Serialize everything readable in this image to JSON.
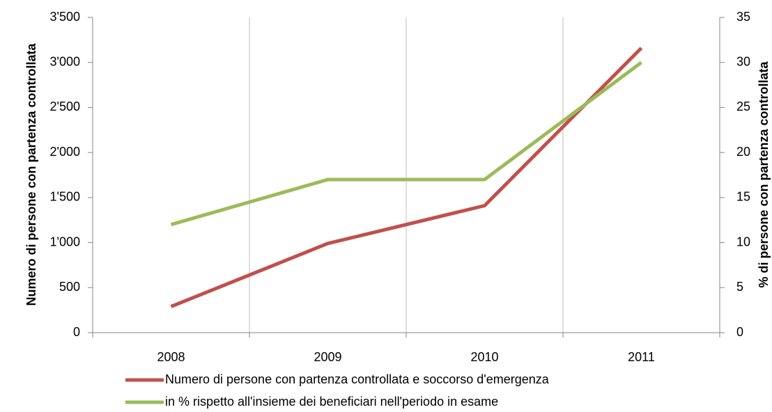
{
  "chart_data": {
    "type": "line",
    "categories": [
      "2008",
      "2009",
      "2010",
      "2011"
    ],
    "series": [
      {
        "name": "Numero di persone con partenza controllata e soccorso d'emergenza",
        "color": "#c0504d",
        "values": [
          290,
          990,
          1410,
          3160
        ]
      },
      {
        "name": "in % rispetto all'insieme dei beneficiari nell'periodo in esame",
        "color": "#9bbb59",
        "values": [
          12,
          17,
          17,
          30
        ],
        "axis": "y2"
      }
    ],
    "ylabel": "Numero di persone con partenza controllata",
    "y2label": "% di persone con partenza controllata",
    "ylim": [
      0,
      3500
    ],
    "yticks": [
      0,
      500,
      {
        "value": 1000,
        "label": "1'000"
      },
      {
        "value": 1500,
        "label": "1'500"
      },
      {
        "value": 2000,
        "label": "2'000"
      },
      {
        "value": 2500,
        "label": "2'500"
      },
      {
        "value": 3000,
        "label": "3'000"
      },
      {
        "value": 3500,
        "label": "3'500"
      }
    ],
    "y2lim": [
      0,
      35
    ],
    "y2ticks": [
      0,
      5,
      10,
      15,
      20,
      25,
      30,
      35
    ],
    "grid": "x",
    "legend": "bottom"
  }
}
